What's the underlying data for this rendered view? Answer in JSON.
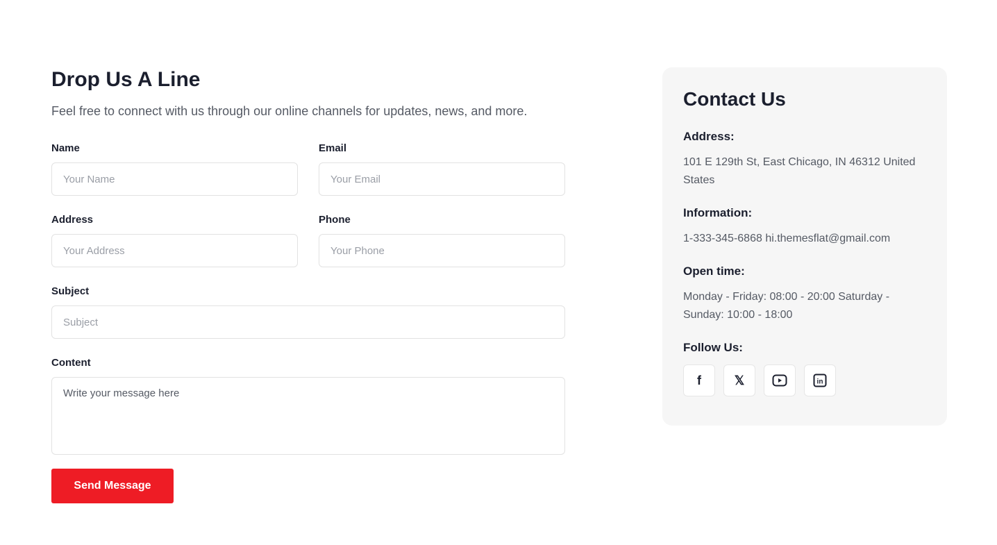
{
  "form": {
    "title": "Drop Us A Line",
    "subtitle": "Feel free to connect with us through our online channels for updates, news, and more.",
    "name_label": "Name",
    "name_ph": "Your Name",
    "email_label": "Email",
    "email_ph": "Your Email",
    "address_label": "Address",
    "address_ph": "Your Address",
    "phone_label": "Phone",
    "phone_ph": "Your Phone",
    "subject_label": "Subject",
    "subject_ph": "Subject",
    "content_label": "Content",
    "content_ph": "Write your message here",
    "send": "Send Message"
  },
  "contact": {
    "title": "Contact Us",
    "address_label": "Address:",
    "address": "101 E 129th St, East Chicago, IN 46312 United States",
    "info_label": "Information:",
    "info": "1-333-345-6868 hi.themesflat@gmail.com",
    "open_label": "Open time:",
    "open": "Monday - Friday: 08:00 - 20:00 Saturday - Sunday: 10:00 - 18:00",
    "follow_label": "Follow Us:",
    "icons": [
      "facebook-icon",
      "x-icon",
      "youtube-icon",
      "linkedin-icon"
    ]
  },
  "colors": {
    "accent": "#ee1c25"
  }
}
